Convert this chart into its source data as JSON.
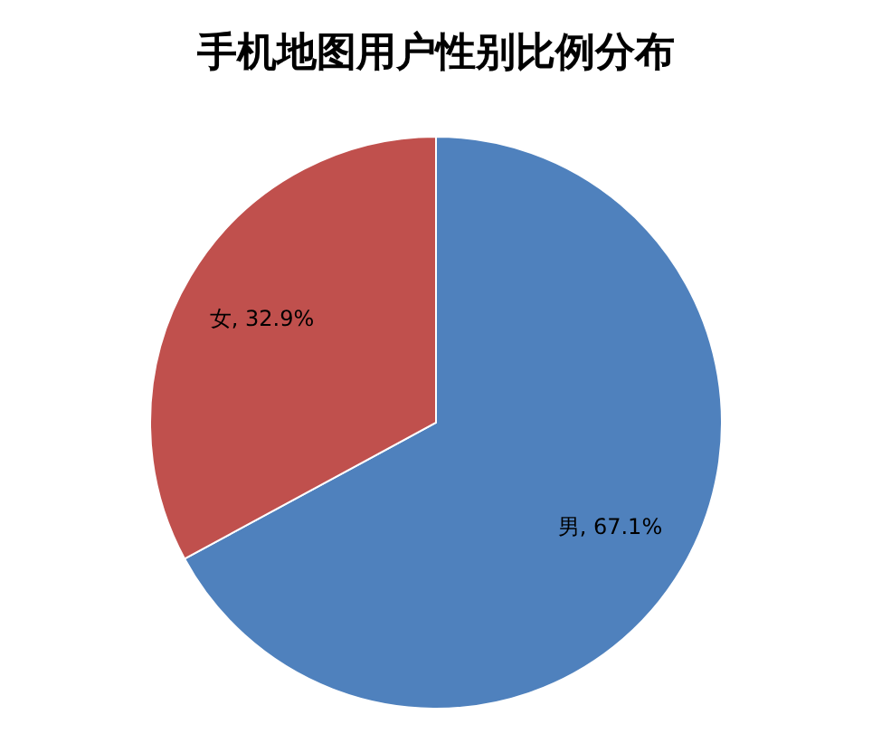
{
  "chart_data": {
    "type": "pie",
    "title": "手机地图用户性别比例分布",
    "categories": [
      "男",
      "女"
    ],
    "values": [
      67.1,
      32.9
    ],
    "colors": [
      "#4f81bd",
      "#c0504d"
    ],
    "value_labels": [
      "67.1%",
      "32.9%"
    ],
    "legend": false
  }
}
